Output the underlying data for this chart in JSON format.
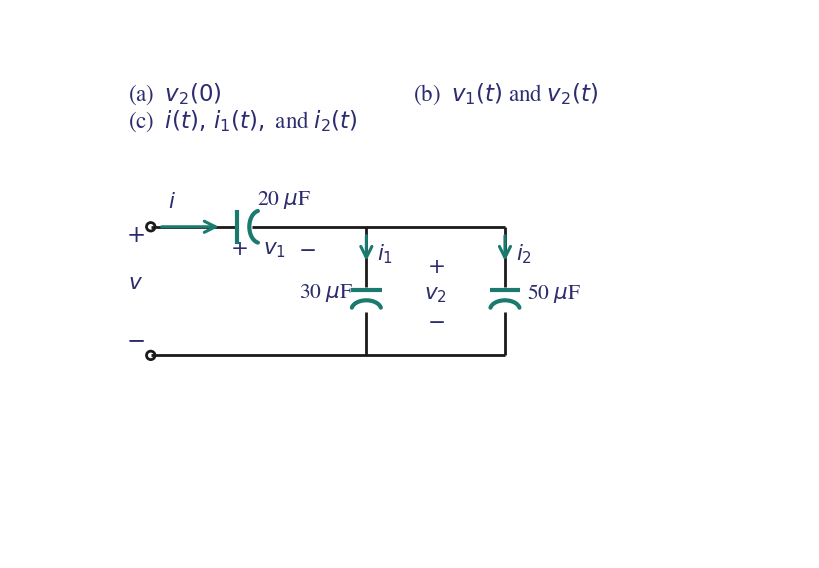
{
  "bg_color": "#ffffff",
  "teal": "#1a7a6e",
  "black": "#1a1a1a",
  "text_color": "#2c2c6e",
  "fig_width": 8.2,
  "fig_height": 5.68,
  "dpi": 100
}
